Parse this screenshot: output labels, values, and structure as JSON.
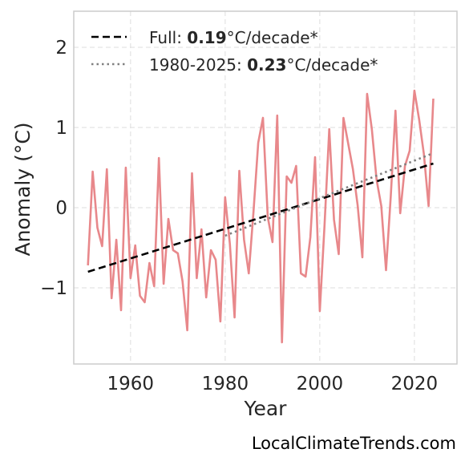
{
  "chart_data": {
    "type": "line",
    "xlabel": "Year",
    "ylabel": "Anomaly (°C)",
    "xlim": [
      1948,
      2029
    ],
    "ylim": [
      -1.95,
      2.45
    ],
    "x_ticks": [
      1960,
      1980,
      2000,
      2020
    ],
    "y_ticks": [
      2,
      1,
      0,
      -1
    ],
    "y_tick_labels": [
      "2",
      "1",
      "0",
      "−1"
    ],
    "grid": true,
    "legend_position": "top-left",
    "series": [
      {
        "style": "solid",
        "color": "#e8888b",
        "x": [
          1951,
          1952,
          1953,
          1954,
          1955,
          1956,
          1957,
          1958,
          1959,
          1960,
          1961,
          1962,
          1963,
          1964,
          1965,
          1966,
          1967,
          1968,
          1969,
          1970,
          1971,
          1972,
          1973,
          1974,
          1975,
          1976,
          1977,
          1978,
          1979,
          1980,
          1981,
          1982,
          1983,
          1984,
          1985,
          1986,
          1987,
          1988,
          1989,
          1990,
          1991,
          1992,
          1993,
          1994,
          1995,
          1996,
          1997,
          1998,
          1999,
          2000,
          2001,
          2002,
          2003,
          2004,
          2005,
          2006,
          2007,
          2008,
          2009,
          2010,
          2011,
          2012,
          2013,
          2014,
          2015,
          2016,
          2017,
          2018,
          2019,
          2020,
          2021,
          2022,
          2023,
          2024
        ],
        "y": [
          -0.72,
          0.45,
          -0.25,
          -0.48,
          0.48,
          -1.13,
          -0.4,
          -1.28,
          0.5,
          -0.88,
          -0.47,
          -1.1,
          -1.18,
          -0.69,
          -0.98,
          0.62,
          -0.95,
          -0.14,
          -0.53,
          -0.57,
          -0.92,
          -1.53,
          0.43,
          -0.88,
          -0.27,
          -1.12,
          -0.53,
          -0.65,
          -1.42,
          0.13,
          -0.45,
          -1.37,
          0.46,
          -0.4,
          -0.82,
          -0.05,
          0.81,
          1.12,
          -0.12,
          -0.43,
          1.15,
          -1.68,
          0.39,
          0.31,
          0.52,
          -0.82,
          -0.86,
          -0.37,
          0.63,
          -1.29,
          -0.22,
          0.98,
          -0.15,
          -0.58,
          1.12,
          0.8,
          0.48,
          0.03,
          -0.62,
          1.42,
          0.98,
          0.35,
          0.02,
          -0.78,
          0.14,
          1.21,
          -0.07,
          0.52,
          0.71,
          1.46,
          1.1,
          0.67,
          0.02,
          1.36
        ]
      },
      {
        "name_prefix": "Full: ",
        "name_bold": "0.19",
        "name_suffix": "°C/decade*",
        "style": "dashed",
        "color": "#000000",
        "x": [
          1951,
          2024
        ],
        "y": [
          -0.8,
          0.55
        ]
      },
      {
        "name_prefix": "1980-2025: ",
        "name_bold": "0.23",
        "name_suffix": "°C/decade*",
        "style": "dotted",
        "color": "#808080",
        "x": [
          1980,
          2024
        ],
        "y": [
          -0.35,
          0.68
        ]
      }
    ]
  },
  "watermark": "LocalClimateTrends.com"
}
